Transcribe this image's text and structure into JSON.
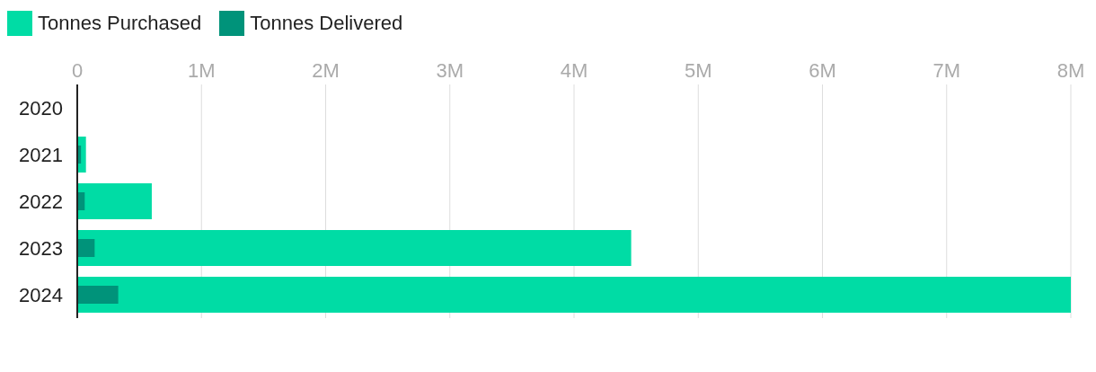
{
  "chart_data": {
    "type": "bar",
    "orientation": "horizontal",
    "categories": [
      "2020",
      "2021",
      "2022",
      "2023",
      "2024"
    ],
    "series": [
      {
        "name": "Tonnes Purchased",
        "color": "#00dca5",
        "values": [
          null,
          70000,
          600000,
          4460000,
          8000000
        ]
      },
      {
        "name": "Tonnes Delivered",
        "color": "#00937a",
        "values": [
          null,
          30000,
          60000,
          140000,
          330000
        ]
      }
    ],
    "xlim": [
      0,
      8000000
    ],
    "xticks": [
      0,
      {
        "value": 1000000,
        "label": "1M"
      },
      {
        "value": 2000000,
        "label": "2M"
      },
      {
        "value": 3000000,
        "label": "3M"
      },
      {
        "value": 4000000,
        "label": "4M"
      },
      {
        "value": 5000000,
        "label": "5M"
      },
      {
        "value": 6000000,
        "label": "6M"
      },
      {
        "value": 7000000,
        "label": "7M"
      },
      {
        "value": 8000000,
        "label": "8M"
      }
    ],
    "grid": "x",
    "legend": "top left"
  }
}
